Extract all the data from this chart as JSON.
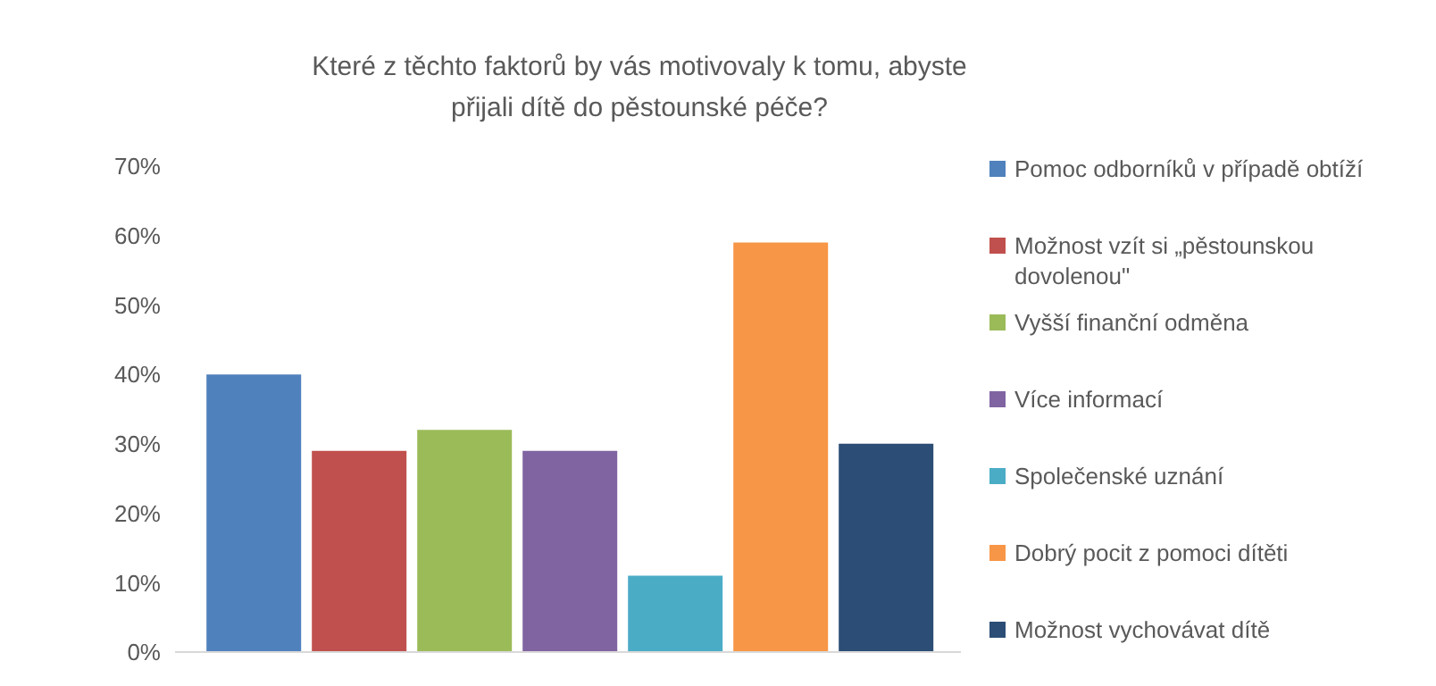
{
  "chart_data": {
    "type": "bar",
    "title": "Které z těchto faktorů by vás motivovaly k tomu, abyste přijali dítě do pěstounské péče?",
    "categories": [
      null
    ],
    "series": [
      {
        "name": "Pomoc odborníků v případě obtíží",
        "color": "#4f81bd",
        "values": [
          40
        ]
      },
      {
        "name": "Možnost vzít si „pěstounskou dovolenou\"",
        "color": "#c0504d",
        "values": [
          29
        ]
      },
      {
        "name": "Vyšší finanční odměna",
        "color": "#9bbb59",
        "values": [
          32
        ]
      },
      {
        "name": "Více informací",
        "color": "#8064a2",
        "values": [
          29
        ]
      },
      {
        "name": "Společenské uznání",
        "color": "#4bacc6",
        "values": [
          11
        ]
      },
      {
        "name": "Dobrý pocit z pomoci dítěti",
        "color": "#f79646",
        "values": [
          59
        ]
      },
      {
        "name": "Možnost vychovávat dítě",
        "color": "#2c4d75",
        "values": [
          30
        ]
      }
    ],
    "ylim": [
      0,
      70
    ],
    "yticks": [
      {
        "value": 0,
        "label": "0%"
      },
      {
        "value": 10,
        "label": "10%"
      },
      {
        "value": 20,
        "label": "20%"
      },
      {
        "value": 30,
        "label": "30%"
      },
      {
        "value": 40,
        "label": "40%"
      },
      {
        "value": 50,
        "label": "50%"
      },
      {
        "value": 60,
        "label": "60%"
      },
      {
        "value": 70,
        "label": "70%"
      }
    ],
    "legend": "right"
  }
}
